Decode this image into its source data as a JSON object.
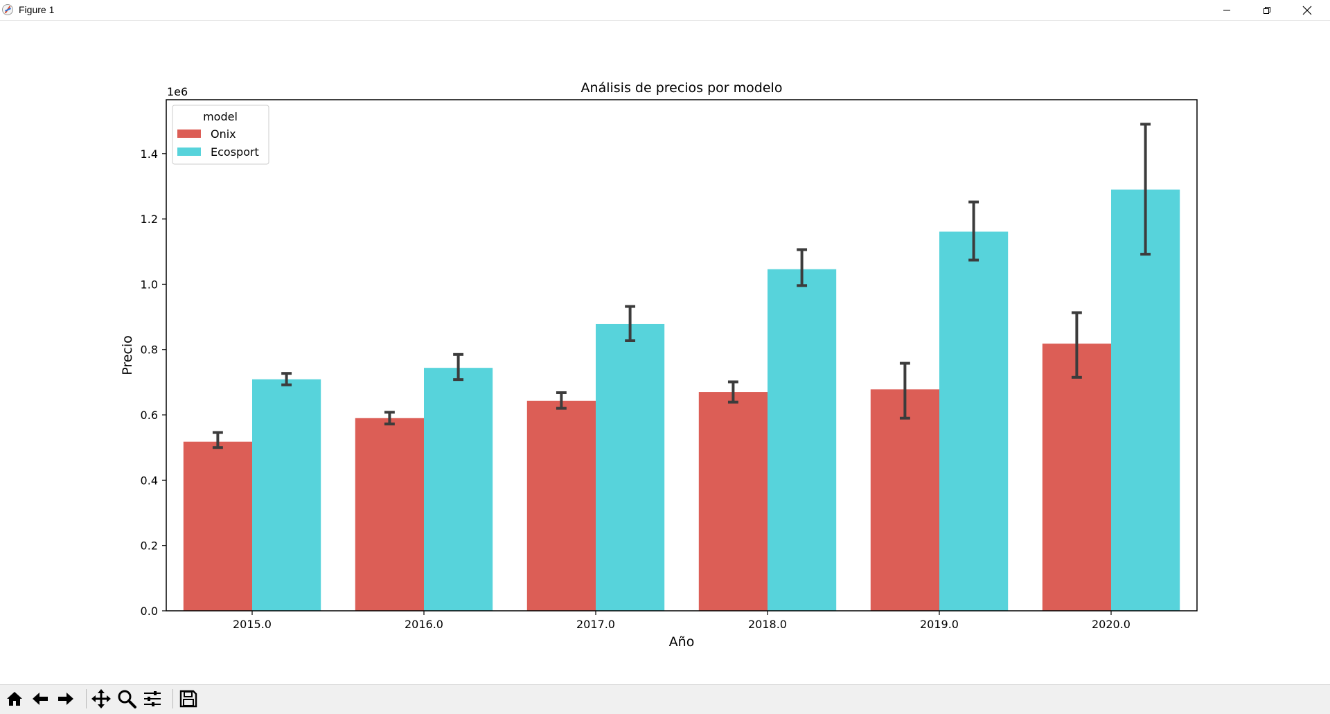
{
  "window": {
    "title": "Figure 1",
    "icons": [
      "matplotlib-app-icon",
      "minimize-icon",
      "restore-icon",
      "close-icon"
    ]
  },
  "toolbar": {
    "buttons": [
      "home-icon",
      "back-arrow-icon",
      "forward-arrow-icon",
      "pan-icon",
      "zoom-icon",
      "configure-subplots-icon",
      "save-icon"
    ]
  },
  "chart_data": {
    "type": "bar",
    "title": "Análisis de precios por modelo",
    "xlabel": "Año",
    "ylabel": "Precio",
    "y_scale_label": "1e6",
    "categories": [
      "2015.0",
      "2016.0",
      "2017.0",
      "2018.0",
      "2019.0",
      "2020.0"
    ],
    "ylim": [
      0,
      1.565
    ],
    "yticks": [
      0.0,
      0.2,
      0.4,
      0.6,
      0.8,
      1.0,
      1.2,
      1.4
    ],
    "ytick_labels": [
      "0.0",
      "0.2",
      "0.4",
      "0.6",
      "0.8",
      "1.0",
      "1.2",
      "1.4"
    ],
    "series": [
      {
        "name": "Onix",
        "color": "#dc5e56",
        "values": [
          0.518,
          0.59,
          0.643,
          0.67,
          0.678,
          0.818
        ],
        "error_low": [
          0.5,
          0.572,
          0.62,
          0.639,
          0.59,
          0.715
        ],
        "error_high": [
          0.546,
          0.608,
          0.668,
          0.701,
          0.758,
          0.913
        ]
      },
      {
        "name": "Ecosport",
        "color": "#57d3db",
        "values": [
          0.709,
          0.744,
          0.878,
          1.046,
          1.161,
          1.29
        ],
        "error_low": [
          0.692,
          0.708,
          0.827,
          0.996,
          1.074,
          1.092
        ],
        "error_high": [
          0.727,
          0.785,
          0.932,
          1.106,
          1.252,
          1.49
        ]
      }
    ],
    "legend": {
      "title": "model",
      "position": "upper-left"
    },
    "grid": false,
    "error_bar_color": "#3c3c3c"
  }
}
